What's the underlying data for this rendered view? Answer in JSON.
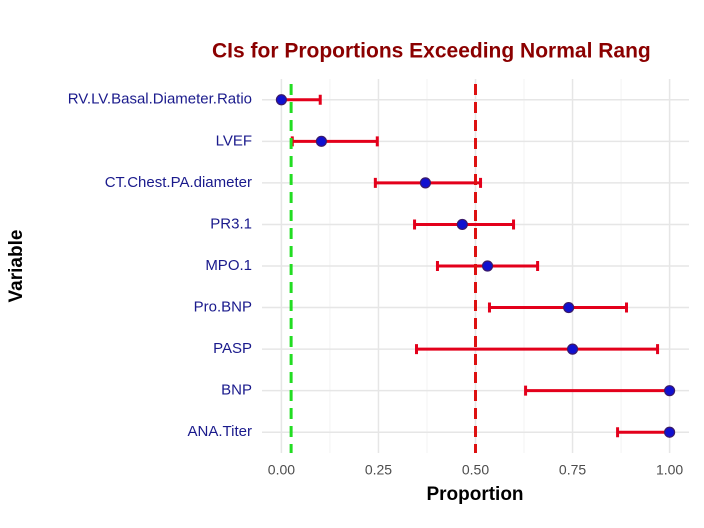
{
  "chart_data": {
    "type": "errorbar",
    "title": "CIs for Proportions Exceeding Normal Rang",
    "x_label": "Proportion",
    "y_label": "Variable",
    "categories": [
      "RV.LV.Basal.Diameter.Ratio",
      "LVEF",
      "CT.Chest.PA.diameter",
      "PR3.1",
      "MPO.1",
      "Pro.BNP",
      "PASP",
      "BNP",
      "ANA.Titer"
    ],
    "values": [
      0.0,
      0.103,
      0.371,
      0.466,
      0.531,
      0.74,
      0.75,
      1.0,
      1.0
    ],
    "lower": [
      0.0,
      0.028,
      0.242,
      0.343,
      0.402,
      0.536,
      0.348,
      0.629,
      0.866
    ],
    "upper": [
      0.1,
      0.247,
      0.513,
      0.598,
      0.66,
      0.889,
      0.969,
      1.0,
      1.0
    ],
    "point_color": "#1010d0",
    "errorbar_color": "#e3001b",
    "reference_lines": [
      {
        "value": 0.025,
        "color": "#22dd22"
      },
      {
        "value": 0.5,
        "color": "#dd1111"
      }
    ],
    "xlim": [
      -0.05,
      1.05
    ],
    "xticks": [
      {
        "value": 0,
        "label": "0.00"
      },
      {
        "value": 0.25,
        "label": "0.25"
      },
      {
        "value": 0.5,
        "label": "0.50"
      },
      {
        "value": 0.75,
        "label": "0.75"
      },
      {
        "value": 1,
        "label": "1.00"
      }
    ],
    "grid": true
  }
}
